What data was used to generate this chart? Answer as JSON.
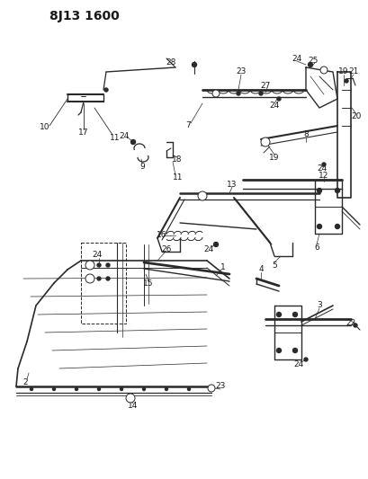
{
  "title": "8J13 1600",
  "bg_color": "#ffffff",
  "line_color": "#2a2a2a",
  "text_color": "#1a1a1a",
  "fig_width": 4.09,
  "fig_height": 5.33,
  "dpi": 100
}
